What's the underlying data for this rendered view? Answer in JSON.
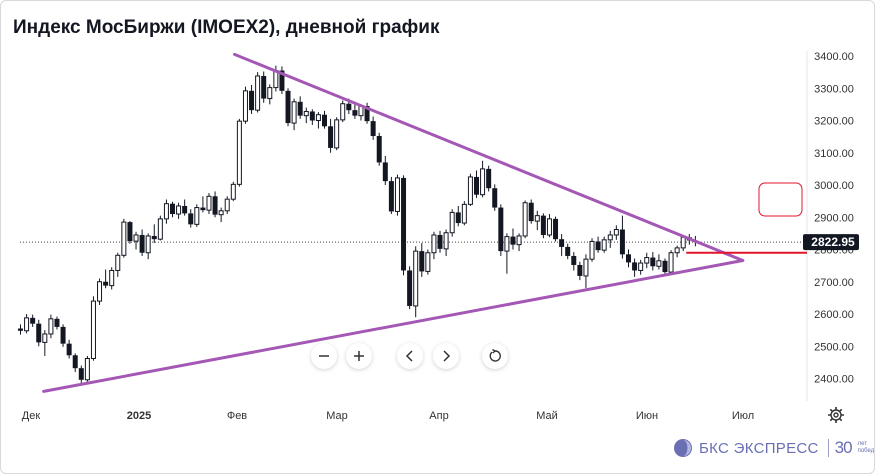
{
  "title": "Индекс МосБиржи (IMOEX2), дневной график",
  "brand": {
    "name": "БКС ЭКСПРЕСС",
    "anniversary": "30",
    "anniversary_caption": [
      "лет",
      "побед"
    ],
    "color": "#6a6fb3"
  },
  "controls": [
    {
      "name": "zoom-out-button",
      "icon": "minus-icon"
    },
    {
      "name": "zoom-in-button",
      "icon": "plus-icon"
    },
    {
      "name": "scroll-left-button",
      "icon": "chevron-left-icon"
    },
    {
      "name": "scroll-right-button",
      "icon": "chevron-right-icon"
    },
    {
      "name": "reset-button",
      "icon": "reset-icon"
    }
  ],
  "settings_icon": "gear-icon",
  "chart_data": {
    "type": "candlestick",
    "x_axis": {
      "labels": [
        "Дек",
        "2025",
        "Фев",
        "Мар",
        "Апр",
        "Май",
        "Июн",
        "Июл"
      ]
    },
    "y_axis": {
      "ticks": [
        "3400.00",
        "3300.00",
        "3200.00",
        "3100.00",
        "3000.00",
        "2900.00",
        "2800.00",
        "2700.00",
        "2600.00",
        "2500.00",
        "2400.00"
      ],
      "range": [
        2360,
        3410
      ],
      "position": "right"
    },
    "last_price": {
      "value": 2822.95,
      "label": "2822.95"
    },
    "grid": false,
    "colors": {
      "candle": "#131722",
      "trendline": "#a457b5",
      "level": "#e0142b",
      "annotation_box": "#e0142b"
    },
    "ohlc": [
      [
        2555,
        2568,
        2536,
        2548
      ],
      [
        2548,
        2600,
        2540,
        2588
      ],
      [
        2588,
        2598,
        2560,
        2570
      ],
      [
        2570,
        2582,
        2500,
        2512
      ],
      [
        2512,
        2550,
        2470,
        2538
      ],
      [
        2538,
        2598,
        2525,
        2585
      ],
      [
        2585,
        2592,
        2552,
        2560
      ],
      [
        2560,
        2568,
        2498,
        2508
      ],
      [
        2508,
        2520,
        2462,
        2472
      ],
      [
        2472,
        2478,
        2420,
        2432
      ],
      [
        2432,
        2440,
        2385,
        2396
      ],
      [
        2396,
        2470,
        2390,
        2462
      ],
      [
        2462,
        2655,
        2455,
        2640
      ],
      [
        2640,
        2710,
        2628,
        2700
      ],
      [
        2700,
        2738,
        2680,
        2688
      ],
      [
        2688,
        2745,
        2676,
        2735
      ],
      [
        2735,
        2790,
        2715,
        2782
      ],
      [
        2782,
        2895,
        2775,
        2885
      ],
      [
        2885,
        2888,
        2818,
        2826
      ],
      [
        2826,
        2855,
        2800,
        2845
      ],
      [
        2845,
        2862,
        2780,
        2790
      ],
      [
        2790,
        2850,
        2770,
        2842
      ],
      [
        2842,
        2878,
        2820,
        2832
      ],
      [
        2832,
        2905,
        2828,
        2895
      ],
      [
        2895,
        2955,
        2880,
        2942
      ],
      [
        2942,
        2948,
        2900,
        2910
      ],
      [
        2910,
        2945,
        2895,
        2935
      ],
      [
        2935,
        2955,
        2905,
        2912
      ],
      [
        2912,
        2925,
        2868,
        2878
      ],
      [
        2878,
        2940,
        2870,
        2930
      ],
      [
        2930,
        2965,
        2915,
        2922
      ],
      [
        2922,
        2975,
        2910,
        2965
      ],
      [
        2965,
        2980,
        2900,
        2908
      ],
      [
        2908,
        2930,
        2885,
        2920
      ],
      [
        2920,
        2965,
        2910,
        2956
      ],
      [
        2956,
        3010,
        2950,
        3002
      ],
      [
        3002,
        3205,
        2995,
        3198
      ],
      [
        3198,
        3305,
        3190,
        3292
      ],
      [
        3292,
        3310,
        3220,
        3232
      ],
      [
        3232,
        3350,
        3225,
        3338
      ],
      [
        3338,
        3352,
        3255,
        3268
      ],
      [
        3268,
        3312,
        3250,
        3302
      ],
      [
        3302,
        3370,
        3290,
        3355
      ],
      [
        3355,
        3368,
        3282,
        3292
      ],
      [
        3292,
        3300,
        3182,
        3192
      ],
      [
        3192,
        3268,
        3170,
        3258
      ],
      [
        3258,
        3275,
        3205,
        3215
      ],
      [
        3215,
        3240,
        3192,
        3228
      ],
      [
        3228,
        3235,
        3186,
        3200
      ],
      [
        3200,
        3226,
        3175,
        3218
      ],
      [
        3218,
        3230,
        3175,
        3182
      ],
      [
        3182,
        3205,
        3100,
        3115
      ],
      [
        3115,
        3210,
        3108,
        3202
      ],
      [
        3202,
        3262,
        3195,
        3252
      ],
      [
        3252,
        3268,
        3220,
        3232
      ],
      [
        3232,
        3258,
        3205,
        3215
      ],
      [
        3215,
        3250,
        3200,
        3245
      ],
      [
        3245,
        3255,
        3190,
        3198
      ],
      [
        3198,
        3212,
        3140,
        3152
      ],
      [
        3152,
        3162,
        3060,
        3070
      ],
      [
        3070,
        3090,
        3000,
        3012
      ],
      [
        3012,
        3025,
        2910,
        2918
      ],
      [
        2918,
        3032,
        2905,
        3022
      ],
      [
        3022,
        3030,
        2720,
        2735
      ],
      [
        2735,
        2748,
        2615,
        2625
      ],
      [
        2625,
        2810,
        2590,
        2795
      ],
      [
        2795,
        2820,
        2715,
        2732
      ],
      [
        2732,
        2800,
        2722,
        2790
      ],
      [
        2790,
        2855,
        2770,
        2845
      ],
      [
        2845,
        2858,
        2790,
        2802
      ],
      [
        2802,
        2862,
        2780,
        2852
      ],
      [
        2852,
        2925,
        2840,
        2915
      ],
      [
        2915,
        2935,
        2872,
        2882
      ],
      [
        2882,
        2950,
        2875,
        2940
      ],
      [
        2940,
        3035,
        2935,
        3025
      ],
      [
        3025,
        3045,
        2960,
        2970
      ],
      [
        2970,
        3075,
        2962,
        3050
      ],
      [
        3050,
        3060,
        2980,
        2990
      ],
      [
        2990,
        3002,
        2920,
        2930
      ],
      [
        2930,
        2940,
        2780,
        2795
      ],
      [
        2795,
        2850,
        2725,
        2840
      ],
      [
        2840,
        2865,
        2800,
        2815
      ],
      [
        2815,
        2850,
        2795,
        2842
      ],
      [
        2842,
        2952,
        2835,
        2945
      ],
      [
        2945,
        2955,
        2880,
        2888
      ],
      [
        2888,
        2920,
        2860,
        2905
      ],
      [
        2905,
        2912,
        2835,
        2845
      ],
      [
        2845,
        2910,
        2838,
        2895
      ],
      [
        2895,
        2902,
        2825,
        2832
      ],
      [
        2832,
        2848,
        2780,
        2808
      ],
      [
        2808,
        2818,
        2770,
        2780
      ],
      [
        2780,
        2792,
        2735,
        2752
      ],
      [
        2752,
        2762,
        2705,
        2718
      ],
      [
        2718,
        2785,
        2680,
        2770
      ],
      [
        2770,
        2835,
        2762,
        2825
      ],
      [
        2825,
        2840,
        2790,
        2798
      ],
      [
        2798,
        2840,
        2790,
        2830
      ],
      [
        2830,
        2858,
        2805,
        2845
      ],
      [
        2845,
        2875,
        2830,
        2862
      ],
      [
        2862,
        2905,
        2772,
        2785
      ],
      [
        2785,
        2800,
        2745,
        2760
      ],
      [
        2760,
        2772,
        2715,
        2735
      ],
      [
        2735,
        2768,
        2722,
        2758
      ],
      [
        2758,
        2790,
        2742,
        2775
      ],
      [
        2775,
        2792,
        2735,
        2748
      ],
      [
        2748,
        2785,
        2738,
        2765
      ],
      [
        2765,
        2772,
        2720,
        2730
      ],
      [
        2730,
        2798,
        2725,
        2790
      ],
      [
        2790,
        2812,
        2776,
        2805
      ],
      [
        2805,
        2845,
        2795,
        2838
      ],
      [
        2838,
        2848,
        2815,
        2828
      ],
      [
        2828,
        2842,
        2810,
        2822.95
      ]
    ],
    "trendlines": [
      {
        "from": {
          "bar": 3.8,
          "price": 2360
        },
        "to": {
          "bar": 118.8,
          "price": 2766
        }
      },
      {
        "from": {
          "bar": 35.2,
          "price": 3405
        },
        "to": {
          "bar": 118.8,
          "price": 2766
        }
      }
    ],
    "horizontal_level": {
      "price": 2790,
      "from_bar": 109.5
    }
  }
}
